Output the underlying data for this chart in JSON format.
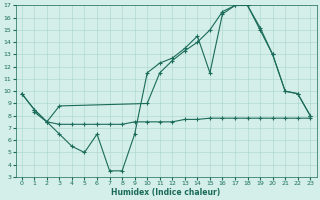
{
  "xlabel": "Humidex (Indice chaleur)",
  "background_color": "#d4eee9",
  "grid_color": "#aad4cc",
  "line_color": "#1a6b5a",
  "xlim": [
    -0.5,
    23.5
  ],
  "ylim": [
    3,
    17
  ],
  "xticks": [
    0,
    1,
    2,
    3,
    4,
    5,
    6,
    7,
    8,
    9,
    10,
    11,
    12,
    13,
    14,
    15,
    16,
    17,
    18,
    19,
    20,
    21,
    22,
    23
  ],
  "yticks": [
    3,
    4,
    5,
    6,
    7,
    8,
    9,
    10,
    11,
    12,
    13,
    14,
    15,
    16,
    17
  ],
  "line1_x": [
    0,
    1,
    2,
    3,
    4,
    5,
    6,
    7,
    8,
    9,
    10,
    11,
    12,
    13,
    14,
    15,
    16,
    17,
    18,
    19,
    20,
    21,
    22,
    23
  ],
  "line1_y": [
    9.8,
    8.5,
    7.5,
    6.5,
    5.5,
    5.0,
    6.5,
    3.5,
    3.5,
    6.5,
    11.5,
    12.3,
    12.7,
    13.5,
    14.5,
    11.5,
    16.3,
    17.0,
    17.0,
    15.0,
    13.0,
    10.0,
    9.8,
    8.0
  ],
  "line2_x": [
    0,
    1,
    2,
    3,
    10,
    11,
    12,
    13,
    14,
    15,
    16,
    17,
    18,
    19,
    20,
    21,
    22,
    23
  ],
  "line2_y": [
    9.8,
    8.5,
    7.5,
    8.8,
    9.0,
    11.5,
    12.5,
    13.3,
    14.0,
    15.0,
    16.5,
    17.0,
    17.0,
    15.2,
    13.0,
    10.0,
    9.8,
    8.0
  ],
  "line3_x": [
    1,
    2,
    3,
    4,
    5,
    6,
    7,
    8,
    9,
    10,
    11,
    12,
    13,
    14,
    15,
    16,
    17,
    18,
    19,
    20,
    21,
    22,
    23
  ],
  "line3_y": [
    8.3,
    7.5,
    7.3,
    7.3,
    7.3,
    7.3,
    7.3,
    7.3,
    7.5,
    7.5,
    7.5,
    7.5,
    7.7,
    7.7,
    7.8,
    7.8,
    7.8,
    7.8,
    7.8,
    7.8,
    7.8,
    7.8,
    7.8
  ]
}
